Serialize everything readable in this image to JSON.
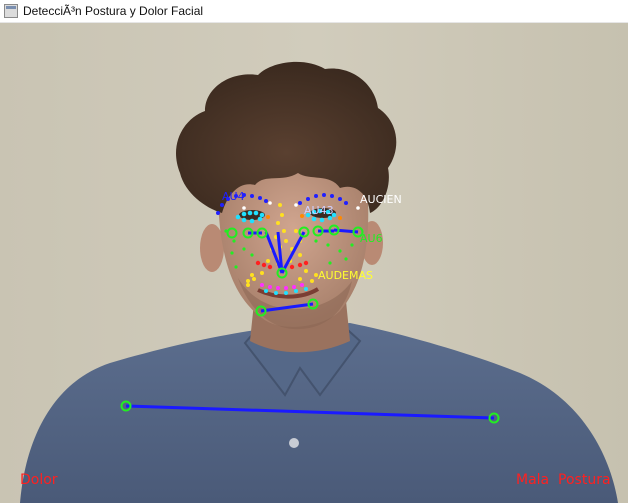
{
  "window": {
    "title": "DetecciÃ³n Postura y Dolor Facial",
    "icon": "opencv-window-icon"
  },
  "overlay": {
    "au_labels": [
      "AU4",
      "AU43",
      "AUCIEN",
      "AU6",
      "AUDEMAS"
    ],
    "status_left": "Dolor",
    "status_right": "Mala  Postura"
  },
  "colors": {
    "status_text": "#ff2020",
    "skeleton_line": "#1a1aff",
    "keypoint": "#22ee22",
    "label_blue": "#2020ff",
    "label_white": "#ffffff",
    "label_green": "#22ee22",
    "label_yellow": "#ffff30"
  }
}
